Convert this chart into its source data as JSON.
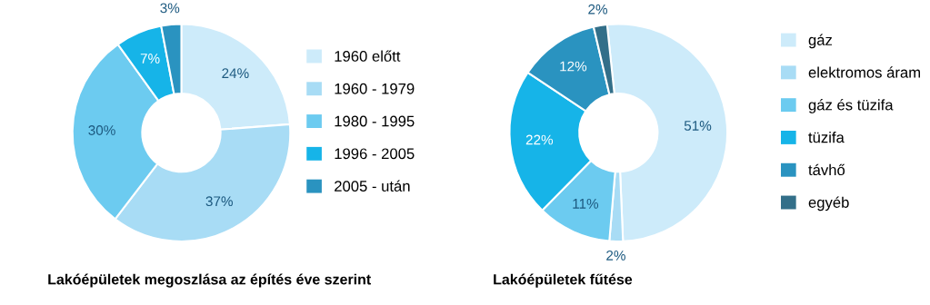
{
  "chart_data": [
    {
      "type": "donut",
      "title": "Lakóépületek megoszlása az építés éve szerint",
      "categories": [
        "1960 előtt",
        "1960 - 1979",
        "1980 - 1995",
        "1996 - 2005",
        "2005 - után"
      ],
      "values": [
        24,
        37,
        30,
        7,
        3
      ],
      "value_labels": [
        "24%",
        "37%",
        "30%",
        "7%",
        "3%"
      ],
      "colors": [
        "#cdebfa",
        "#a8dcf5",
        "#6ccbf0",
        "#16b4e8",
        "#2a93c0"
      ],
      "legend": "right"
    },
    {
      "type": "donut",
      "title": "Lakóépületek fűtése",
      "categories": [
        "gáz",
        "elektromos áram",
        "gáz és tüzifa",
        "tüzifa",
        "távhő",
        "egyéb"
      ],
      "values": [
        51,
        2,
        11,
        22,
        12,
        2
      ],
      "value_labels": [
        "51%",
        "2%",
        "11%",
        "22%",
        "12%",
        "2%"
      ],
      "colors": [
        "#cdebfa",
        "#a8dcf5",
        "#6ccbf0",
        "#16b4e8",
        "#2a93c0",
        "#336f89"
      ],
      "legend": "right"
    }
  ]
}
